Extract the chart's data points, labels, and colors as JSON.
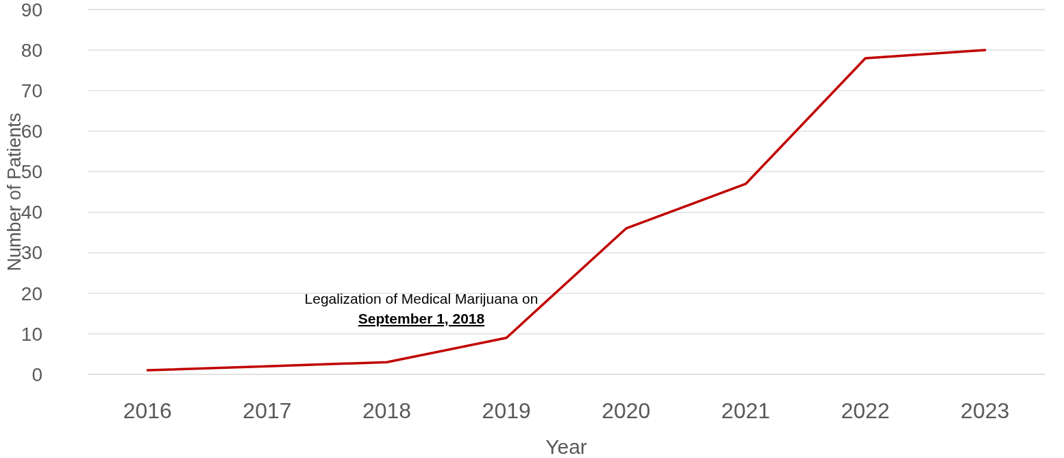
{
  "chart_data": {
    "type": "line",
    "xlabel": "Year",
    "ylabel": "Number of Patients",
    "categories": [
      "2016",
      "2017",
      "2018",
      "2019",
      "2020",
      "2021",
      "2022",
      "2023"
    ],
    "series": [
      {
        "color": "#c00000",
        "values": [
          1,
          2,
          3,
          9,
          36,
          47,
          78,
          80
        ]
      }
    ],
    "ylim": [
      0,
      90
    ],
    "yticks": [
      0,
      10,
      20,
      30,
      40,
      50,
      60,
      70,
      80,
      90
    ],
    "grid": "y",
    "marker": "none",
    "line_style": "solid",
    "annotations": [
      "Legalization of Medical Marijuana on\nSeptember 1, 2018"
    ]
  }
}
